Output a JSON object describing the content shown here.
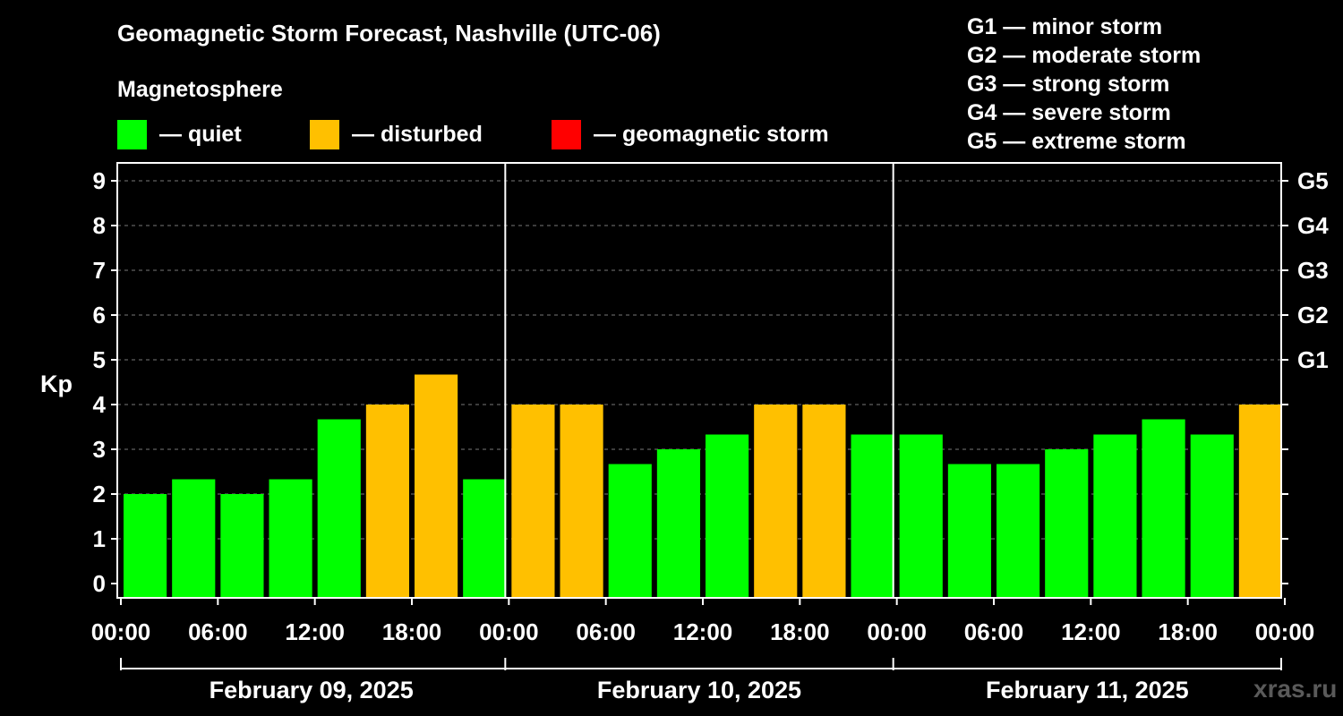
{
  "title": "Geomagnetic Storm Forecast, Nashville (UTC-06)",
  "subtitle": "Magnetosphere",
  "legend": [
    {
      "label": "— quiet",
      "color": "#00ff00"
    },
    {
      "label": "— disturbed",
      "color": "#ffc000"
    },
    {
      "label": "— geomagnetic storm",
      "color": "#ff0000"
    }
  ],
  "storm_scale": [
    "G1 — minor storm",
    "G2 — moderate storm",
    "G3 — strong storm",
    "G4 — severe storm",
    "G5 — extreme storm"
  ],
  "watermark": "xras.ru",
  "chart_data": {
    "type": "bar",
    "ylabel": "Kp",
    "ylim": [
      0,
      9
    ],
    "yticks": [
      0,
      1,
      2,
      3,
      4,
      5,
      6,
      7,
      8,
      9
    ],
    "right_ticks": [
      {
        "y": 5,
        "label": "G1"
      },
      {
        "y": 6,
        "label": "G2"
      },
      {
        "y": 7,
        "label": "G3"
      },
      {
        "y": 8,
        "label": "G4"
      },
      {
        "y": 9,
        "label": "G5"
      }
    ],
    "x_tick_labels": [
      "00:00",
      "06:00",
      "12:00",
      "18:00",
      "00:00",
      "06:00",
      "12:00",
      "18:00",
      "00:00",
      "06:00",
      "12:00",
      "18:00",
      "00:00"
    ],
    "days": [
      "February 09, 2025",
      "February 10, 2025",
      "February 11, 2025"
    ],
    "grid": "horizontal dashed",
    "colors": {
      "quiet": "#00ff00",
      "disturbed": "#ffc000",
      "storm": "#ff0000"
    },
    "values": [
      2.0,
      2.33,
      2.0,
      2.33,
      3.67,
      4.0,
      4.67,
      2.33,
      4.0,
      4.0,
      2.67,
      3.0,
      3.33,
      4.0,
      4.0,
      3.33,
      3.33,
      2.67,
      2.67,
      3.0,
      3.33,
      3.67,
      3.33,
      4.0
    ]
  }
}
